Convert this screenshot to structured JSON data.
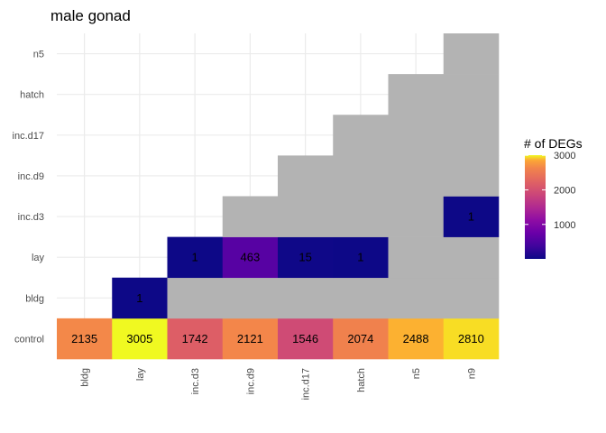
{
  "chart_data": {
    "type": "heatmap",
    "title": "male gonad",
    "xlabel": "",
    "ylabel": "",
    "x_categories": [
      "bldg",
      "lay",
      "inc.d3",
      "inc.d9",
      "inc.d17",
      "hatch",
      "n5",
      "n9"
    ],
    "y_categories": [
      "control",
      "bldg",
      "lay",
      "inc.d3",
      "inc.d9",
      "inc.d17",
      "hatch",
      "n5"
    ],
    "na_color": "#b3b3b3",
    "grid": true,
    "colorscale": {
      "name": "plasma",
      "title": "# of DEGs",
      "limits": [
        1,
        3005
      ],
      "ticks": [
        1000,
        2000,
        3000
      ],
      "tick_labels": [
        "1000",
        "2000",
        "3000"
      ],
      "legend_position": "right"
    },
    "cells": [
      {
        "x": "bldg",
        "y": "control",
        "value": 2135
      },
      {
        "x": "lay",
        "y": "control",
        "value": 3005
      },
      {
        "x": "inc.d3",
        "y": "control",
        "value": 1742
      },
      {
        "x": "inc.d9",
        "y": "control",
        "value": 2121
      },
      {
        "x": "inc.d17",
        "y": "control",
        "value": 1546
      },
      {
        "x": "hatch",
        "y": "control",
        "value": 2074
      },
      {
        "x": "n5",
        "y": "control",
        "value": 2488
      },
      {
        "x": "n9",
        "y": "control",
        "value": 2810
      },
      {
        "x": "lay",
        "y": "bldg",
        "value": 1
      },
      {
        "x": "inc.d3",
        "y": "bldg",
        "value": null
      },
      {
        "x": "inc.d9",
        "y": "bldg",
        "value": null
      },
      {
        "x": "inc.d17",
        "y": "bldg",
        "value": null
      },
      {
        "x": "hatch",
        "y": "bldg",
        "value": null
      },
      {
        "x": "n5",
        "y": "bldg",
        "value": null
      },
      {
        "x": "n9",
        "y": "bldg",
        "value": null
      },
      {
        "x": "inc.d3",
        "y": "lay",
        "value": 1
      },
      {
        "x": "inc.d9",
        "y": "lay",
        "value": 463
      },
      {
        "x": "inc.d17",
        "y": "lay",
        "value": 15
      },
      {
        "x": "hatch",
        "y": "lay",
        "value": 1
      },
      {
        "x": "n5",
        "y": "lay",
        "value": null
      },
      {
        "x": "n9",
        "y": "lay",
        "value": null
      },
      {
        "x": "inc.d9",
        "y": "inc.d3",
        "value": null
      },
      {
        "x": "inc.d17",
        "y": "inc.d3",
        "value": null
      },
      {
        "x": "hatch",
        "y": "inc.d3",
        "value": null
      },
      {
        "x": "n5",
        "y": "inc.d3",
        "value": null
      },
      {
        "x": "n9",
        "y": "inc.d3",
        "value": 1
      },
      {
        "x": "inc.d17",
        "y": "inc.d9",
        "value": null
      },
      {
        "x": "hatch",
        "y": "inc.d9",
        "value": null
      },
      {
        "x": "n5",
        "y": "inc.d9",
        "value": null
      },
      {
        "x": "n9",
        "y": "inc.d9",
        "value": null
      },
      {
        "x": "hatch",
        "y": "inc.d17",
        "value": null
      },
      {
        "x": "n5",
        "y": "inc.d17",
        "value": null
      },
      {
        "x": "n9",
        "y": "inc.d17",
        "value": null
      },
      {
        "x": "n5",
        "y": "hatch",
        "value": null
      },
      {
        "x": "n9",
        "y": "hatch",
        "value": null
      },
      {
        "x": "n9",
        "y": "n5",
        "value": null
      }
    ]
  }
}
